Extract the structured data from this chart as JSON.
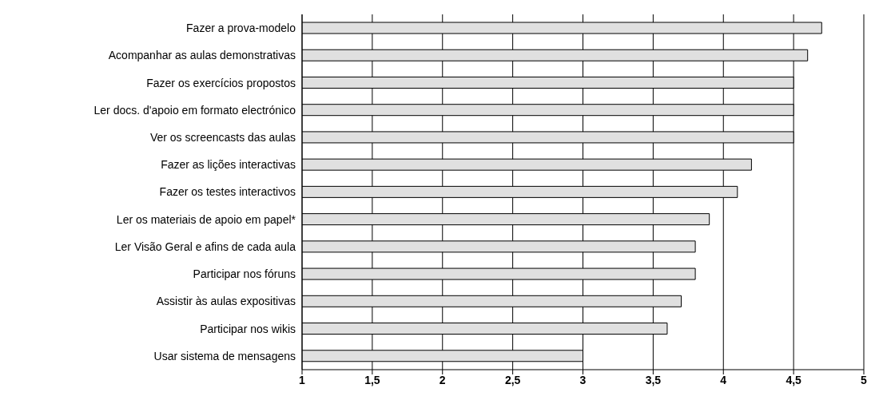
{
  "chart_data": {
    "type": "bar",
    "orientation": "horizontal",
    "categories": [
      "Fazer a prova-modelo",
      "Acompanhar as aulas demonstrativas",
      "Fazer os exercícios propostos",
      "Ler docs. d'apoio em formato electrónico",
      "Ver os screencasts das aulas",
      "Fazer as lições interactivas",
      "Fazer os testes interactivos",
      "Ler os materiais de apoio em papel*",
      "Ler Visão Geral e afins de cada aula",
      "Participar nos fóruns",
      "Assistir às aulas expositivas",
      "Participar nos wikis",
      "Usar sistema de mensagens"
    ],
    "values": [
      4.7,
      4.6,
      4.5,
      4.5,
      4.5,
      4.2,
      4.1,
      3.9,
      3.8,
      3.8,
      3.7,
      3.6,
      3.0
    ],
    "color": "#e0e0e0",
    "xlim": [
      1,
      5
    ],
    "xticks": [
      1,
      {
        "value": 1.5,
        "label": "1,5"
      },
      2,
      {
        "value": 2.5,
        "label": "2,5"
      },
      3,
      {
        "value": 3.5,
        "label": "3,5"
      },
      4,
      {
        "value": 4.5,
        "label": "4,5"
      },
      5
    ],
    "grid": "x",
    "legend": false
  }
}
